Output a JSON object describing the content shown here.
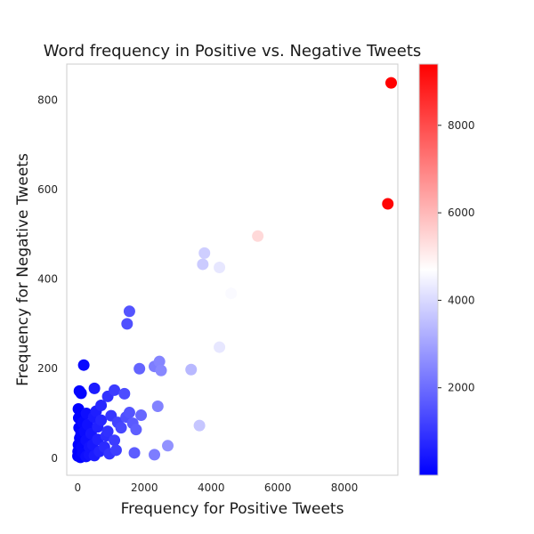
{
  "chart_data": {
    "type": "scatter",
    "title": "Word frequency in Positive vs. Negative Tweets",
    "xlabel": "Frequency for Positive Tweets",
    "ylabel": "Frequency for Negative Tweets",
    "xlim": [
      -330,
      9600
    ],
    "ylim": [
      -38,
      880
    ],
    "xticks": [
      0,
      2000,
      4000,
      6000,
      8000
    ],
    "yticks": [
      0,
      200,
      400,
      600,
      800
    ],
    "grid": false,
    "colormap": "bwr",
    "color_range": [
      0,
      9400
    ],
    "colorbar_ticks": [
      2000,
      4000,
      6000,
      8000
    ],
    "colors": {
      "low": "#0000ff",
      "mid": "#ffffff",
      "high": "#ff0000"
    },
    "points": [
      {
        "x": 9400,
        "y": 838
      },
      {
        "x": 9300,
        "y": 568
      },
      {
        "x": 5400,
        "y": 496
      },
      {
        "x": 3800,
        "y": 458
      },
      {
        "x": 3750,
        "y": 433
      },
      {
        "x": 4250,
        "y": 426
      },
      {
        "x": 4600,
        "y": 368
      },
      {
        "x": 4250,
        "y": 248
      },
      {
        "x": 3650,
        "y": 73
      },
      {
        "x": 3400,
        "y": 198
      },
      {
        "x": 2450,
        "y": 216
      },
      {
        "x": 2500,
        "y": 196
      },
      {
        "x": 2300,
        "y": 205
      },
      {
        "x": 1850,
        "y": 200
      },
      {
        "x": 2700,
        "y": 28
      },
      {
        "x": 2300,
        "y": 8
      },
      {
        "x": 2400,
        "y": 116
      },
      {
        "x": 1550,
        "y": 328
      },
      {
        "x": 1480,
        "y": 300
      },
      {
        "x": 1550,
        "y": 102
      },
      {
        "x": 1900,
        "y": 96
      },
      {
        "x": 1750,
        "y": 64
      },
      {
        "x": 1650,
        "y": 78
      },
      {
        "x": 1700,
        "y": 12
      },
      {
        "x": 1400,
        "y": 144
      },
      {
        "x": 1100,
        "y": 152
      },
      {
        "x": 900,
        "y": 138
      },
      {
        "x": 1450,
        "y": 92
      },
      {
        "x": 1300,
        "y": 68
      },
      {
        "x": 1200,
        "y": 80
      },
      {
        "x": 1000,
        "y": 95
      },
      {
        "x": 1100,
        "y": 40
      },
      {
        "x": 1150,
        "y": 18
      },
      {
        "x": 950,
        "y": 10
      },
      {
        "x": 850,
        "y": 50
      },
      {
        "x": 700,
        "y": 118
      },
      {
        "x": 700,
        "y": 85
      },
      {
        "x": 500,
        "y": 156
      },
      {
        "x": 480,
        "y": 92
      },
      {
        "x": 600,
        "y": 70
      },
      {
        "x": 400,
        "y": 55
      },
      {
        "x": 450,
        "y": 30
      },
      {
        "x": 350,
        "y": 8
      },
      {
        "x": 250,
        "y": 40
      },
      {
        "x": 180,
        "y": 208
      },
      {
        "x": 100,
        "y": 145
      },
      {
        "x": 50,
        "y": 150
      },
      {
        "x": 20,
        "y": 110
      },
      {
        "x": 30,
        "y": 90
      },
      {
        "x": 150,
        "y": 80
      },
      {
        "x": 300,
        "y": 75
      },
      {
        "x": 200,
        "y": 60
      },
      {
        "x": 100,
        "y": 55
      },
      {
        "x": 60,
        "y": 45
      },
      {
        "x": 20,
        "y": 30
      },
      {
        "x": 10,
        "y": 15
      },
      {
        "x": 5,
        "y": 5
      },
      {
        "x": 80,
        "y": 2
      },
      {
        "x": 150,
        "y": 12
      },
      {
        "x": 250,
        "y": 4
      },
      {
        "x": 500,
        "y": 6
      },
      {
        "x": 650,
        "y": 15
      },
      {
        "x": 800,
        "y": 25
      },
      {
        "x": 600,
        "y": 42
      },
      {
        "x": 350,
        "y": 25
      },
      {
        "x": 120,
        "y": 25
      },
      {
        "x": 40,
        "y": 68
      },
      {
        "x": 260,
        "y": 100
      },
      {
        "x": 550,
        "y": 105
      },
      {
        "x": 900,
        "y": 60
      }
    ]
  }
}
